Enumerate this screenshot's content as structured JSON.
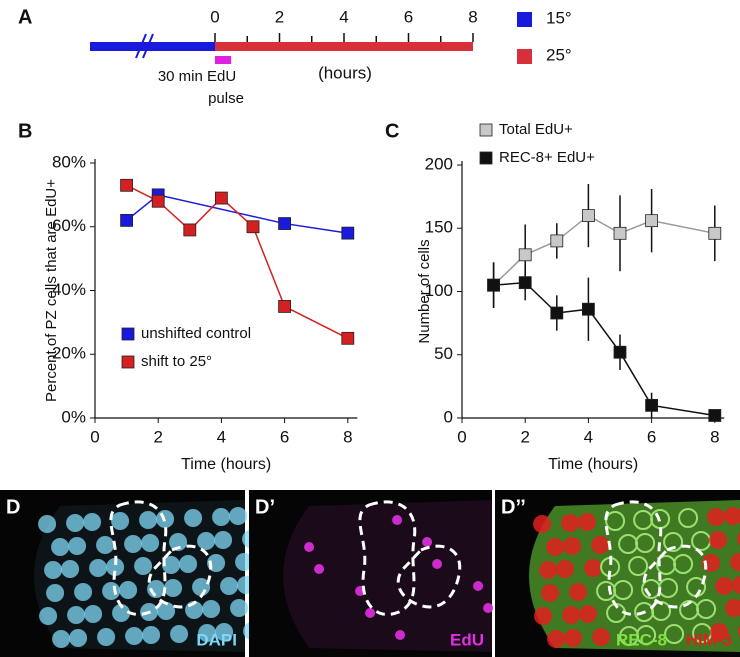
{
  "timeline": {
    "panel": "A",
    "xlim": [
      0,
      8
    ],
    "xticks": [
      0,
      2,
      4,
      6,
      8
    ],
    "minor_xticks": [
      1,
      3,
      5,
      7
    ],
    "unit": "(hours)",
    "pulse": {
      "range": [
        0,
        0.5
      ],
      "label": [
        "30 min EdU",
        "pulse"
      ],
      "color": "#e020e0"
    },
    "legend": [
      {
        "name": "15°",
        "color": "#1a1adc"
      },
      {
        "name": "25°",
        "color": "#d8303a"
      }
    ]
  },
  "chart_data": [
    {
      "type": "line",
      "panel": "B",
      "ylabel": "Percent of PZ cells that are EdU+",
      "xlabel": "Time (hours)",
      "xlim": [
        0,
        8.3
      ],
      "xticks": [
        0,
        2,
        4,
        6,
        8
      ],
      "ylim": [
        0,
        80
      ],
      "yticks": [
        {
          "value": 0,
          "label": "0%"
        },
        {
          "value": 20,
          "label": "20%"
        },
        {
          "value": 40,
          "label": "40%"
        },
        {
          "value": 60,
          "label": "60%"
        },
        {
          "value": 80,
          "label": "80%"
        }
      ],
      "legend": "bottom-left",
      "series": [
        {
          "name": "unshifted control",
          "color": "#1a1adc",
          "line_color": "#1a1adc",
          "x": [
            1,
            2,
            6,
            8
          ],
          "values": [
            62,
            70,
            61,
            58
          ]
        },
        {
          "name": "shift to 25°",
          "color": "#d42020",
          "line_color": "#d42020",
          "x": [
            1,
            2,
            3,
            4,
            5,
            6,
            8
          ],
          "values": [
            73,
            68,
            59,
            69,
            60,
            35,
            25
          ]
        }
      ]
    },
    {
      "type": "line",
      "panel": "C",
      "ylabel": "Number of cells",
      "xlabel": "Time (hours)",
      "xlim": [
        0,
        8.3
      ],
      "xticks": [
        0,
        2,
        4,
        6,
        8
      ],
      "ylim": [
        0,
        200
      ],
      "yticks": [
        0,
        50,
        100,
        150,
        200
      ],
      "legend": "top-left",
      "series": [
        {
          "name": "Total EdU+",
          "color": "#c8c8c8",
          "line_color": "#999999",
          "x": [
            1,
            2,
            3,
            4,
            5,
            6,
            8
          ],
          "values": [
            105,
            129,
            140,
            160,
            146,
            156,
            146
          ],
          "errors": [
            18,
            24,
            14,
            25,
            30,
            25,
            22
          ]
        },
        {
          "name": "REC-8+ EdU+",
          "color": "#111111",
          "line_color": "#111111",
          "x": [
            1,
            2,
            3,
            4,
            5,
            6,
            8
          ],
          "values": [
            105,
            107,
            83,
            86,
            52,
            10,
            2
          ],
          "errors": [
            18,
            14,
            14,
            25,
            14,
            10,
            3
          ]
        }
      ]
    }
  ],
  "images": [
    {
      "panel": "D",
      "channels": [
        {
          "name": "DAPI",
          "color": "#7fd8f5"
        }
      ]
    },
    {
      "panel": "D’",
      "channels": [
        {
          "name": "EdU",
          "color": "#e030e0"
        }
      ]
    },
    {
      "panel": "D’’",
      "channels": [
        {
          "name": "REC-8",
          "color": "#80e040"
        },
        {
          "name": "HIM-3",
          "color": "#e02020"
        }
      ]
    }
  ]
}
